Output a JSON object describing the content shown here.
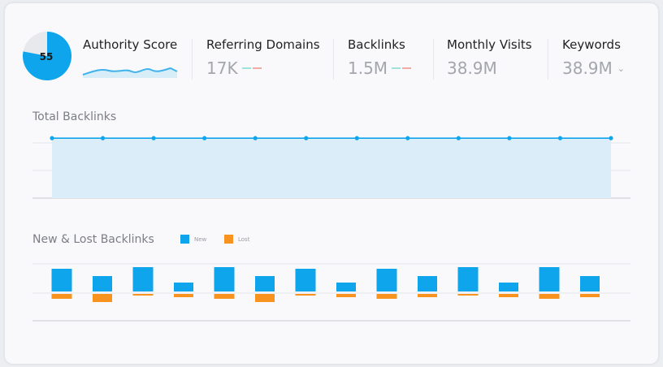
{
  "colors": {
    "blue": "#0ea5ec",
    "orange": "#f7931e",
    "line_fill": "#dcedfa",
    "grid": "#e3e5e9",
    "axis": "#c7c9cd"
  },
  "authority": {
    "label": "Authority Score",
    "score": "55",
    "fraction": 0.78
  },
  "metrics": [
    {
      "label": "Referring Domains",
      "value": "17K",
      "indicator": "mini-trend"
    },
    {
      "label": "Backlinks",
      "value": "1.5M",
      "indicator": "mini-trend"
    },
    {
      "label": "Monthly Visits",
      "value": "38.9M",
      "indicator": ""
    },
    {
      "label": "Keywords",
      "value": "38.9M",
      "indicator": "chevron-down-icon"
    }
  ],
  "total_backlinks": {
    "title": "Total Backlinks"
  },
  "new_lost": {
    "title": "New & Lost Backlinks",
    "legend": [
      {
        "label": "New",
        "color": "#0ea5ec"
      },
      {
        "label": "Lost",
        "color": "#f7931e"
      }
    ]
  },
  "chart_data": [
    {
      "type": "line",
      "title": "Total Backlinks",
      "x": [
        1,
        2,
        3,
        4,
        5,
        6,
        7,
        8,
        9,
        10,
        11,
        12
      ],
      "y": [
        100,
        100,
        100,
        100,
        100,
        100,
        100,
        100,
        100,
        100,
        100,
        100
      ],
      "ylim": [
        0,
        130
      ],
      "grid": true
    },
    {
      "type": "bar",
      "title": "New & Lost Backlinks",
      "categories": [
        1,
        2,
        3,
        4,
        5,
        6,
        7,
        8,
        9,
        10,
        11,
        12,
        13,
        14
      ],
      "series": [
        {
          "name": "New",
          "values": [
            28,
            19,
            30,
            11,
            30,
            19,
            28,
            11,
            28,
            19,
            30,
            11,
            30,
            19
          ]
        },
        {
          "name": "Lost",
          "values": [
            -6,
            -10,
            -2,
            -4,
            -6,
            -10,
            -2,
            -4,
            -6,
            -4,
            -2,
            -4,
            -6,
            -4
          ]
        }
      ],
      "grid": true
    }
  ]
}
